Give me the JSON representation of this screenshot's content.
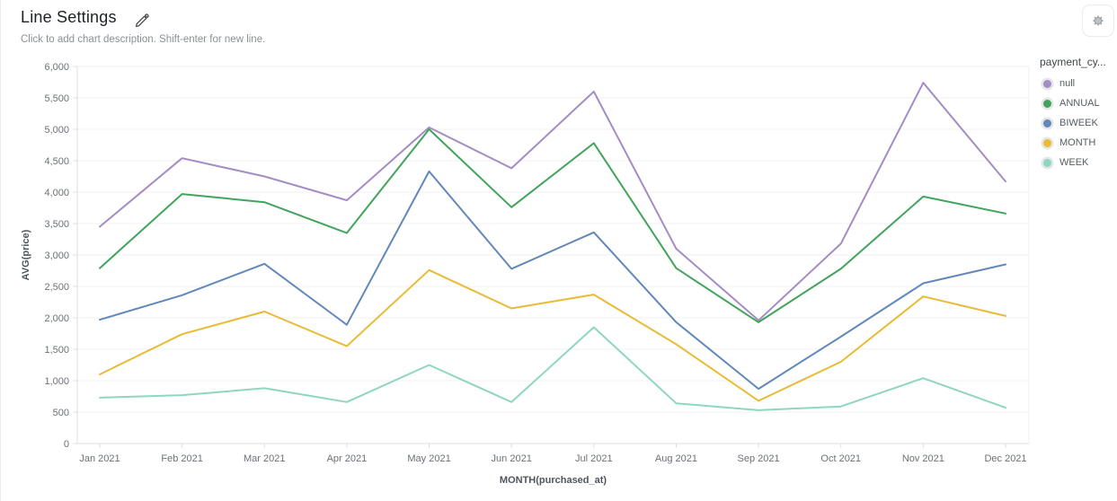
{
  "header": {
    "title": "Line Settings",
    "description_placeholder": "Click to add chart description. Shift-enter for new line.",
    "edit_icon": "pencil-icon",
    "settings_icon": "gear-icon"
  },
  "colors": {
    "title_text": "#1d2125",
    "subtitle_text": "#8b9097",
    "axis_text": "#6b7179",
    "axis_title_text": "#4f565e",
    "gridline": "#f1f1f1",
    "axis_border": "#dcdfe3",
    "legend_ring": "#e6e6e6"
  },
  "chart_data": {
    "type": "line",
    "title": "Line Settings",
    "xlabel": "MONTH(purchased_at)",
    "ylabel": "AVG(price)",
    "ylim": [
      0,
      6000
    ],
    "y_tick_step": 500,
    "grid": true,
    "legend_position": "right",
    "legend_title": "payment_cy...",
    "categories": [
      "Jan 2021",
      "Feb 2021",
      "Mar 2021",
      "Apr 2021",
      "May 2021",
      "Jun 2021",
      "Jul 2021",
      "Aug 2021",
      "Sep 2021",
      "Oct 2021",
      "Nov 2021",
      "Dec 2021"
    ],
    "y_tick_labels": [
      "0",
      "500",
      "1,000",
      "1,500",
      "2,000",
      "2,500",
      "3,000",
      "3,500",
      "4,000",
      "4,500",
      "5,000",
      "5,500",
      "6,000"
    ],
    "series": [
      {
        "name": "null",
        "color": "#a48cc4",
        "values": [
          3450,
          4540,
          4250,
          3870,
          5030,
          4380,
          5600,
          3100,
          1960,
          3180,
          5740,
          4170
        ]
      },
      {
        "name": "ANNUAL",
        "color": "#42a45c",
        "values": [
          2790,
          3970,
          3840,
          3350,
          5000,
          3760,
          4780,
          2790,
          1930,
          2780,
          3930,
          3660
        ]
      },
      {
        "name": "BIWEEK",
        "color": "#6288bb",
        "values": [
          1970,
          2360,
          2860,
          1890,
          4330,
          2780,
          3360,
          1930,
          870,
          1700,
          2550,
          2850
        ]
      },
      {
        "name": "MONTH",
        "color": "#e9bb35",
        "values": [
          1100,
          1740,
          2100,
          1550,
          2760,
          2150,
          2370,
          1580,
          680,
          1300,
          2340,
          2030
        ]
      },
      {
        "name": "WEEK",
        "color": "#8ed6c1",
        "values": [
          730,
          770,
          880,
          660,
          1250,
          660,
          1850,
          640,
          530,
          590,
          1040,
          570
        ]
      }
    ]
  }
}
